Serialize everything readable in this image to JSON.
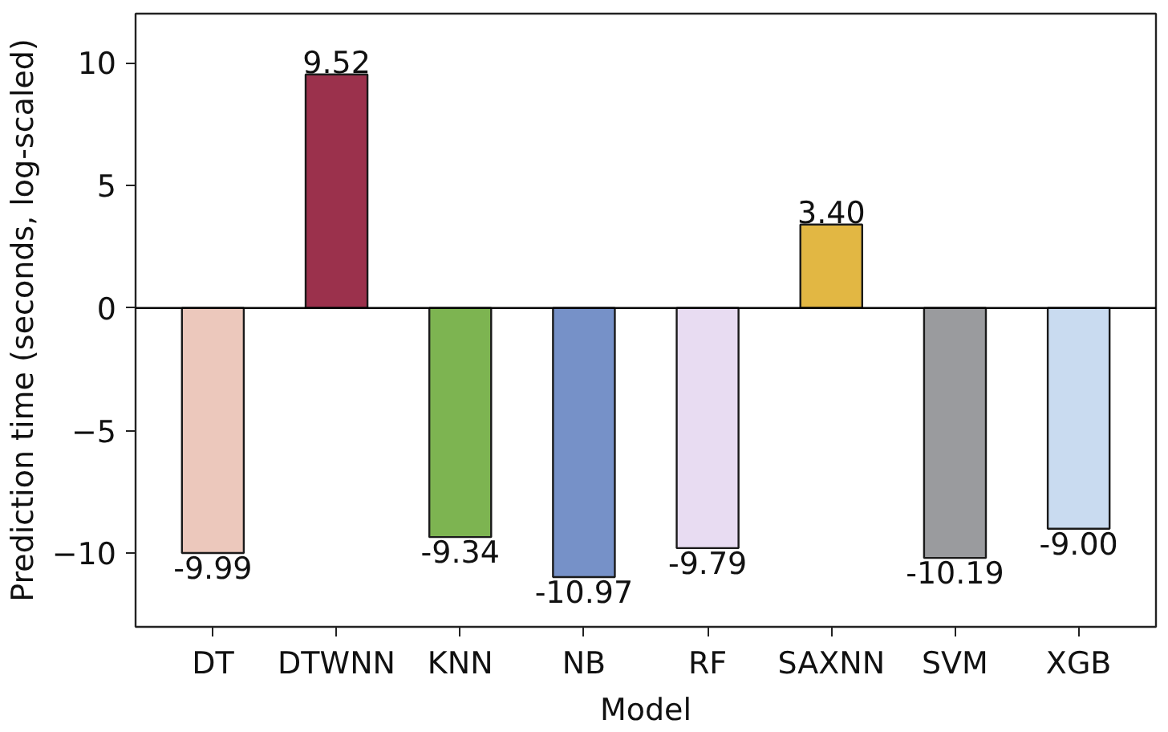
{
  "chart_data": {
    "type": "bar",
    "xlabel": "Model",
    "ylabel": "Prediction time (seconds, log-scaled)",
    "categories": [
      "DT",
      "DTWNN",
      "KNN",
      "NB",
      "RF",
      "SAXNN",
      "SVM",
      "XGB"
    ],
    "values": [
      -9.99,
      9.52,
      -9.34,
      -10.97,
      -9.79,
      3.4,
      -10.19,
      -9.0
    ],
    "value_labels": [
      "-9.99",
      "9.52",
      "-9.34",
      "-10.97",
      "-9.79",
      "3.40",
      "-10.19",
      "-9.00"
    ],
    "colors": [
      "#ecc8bc",
      "#9b314c",
      "#7db451",
      "#7691c8",
      "#e8dcf2",
      "#e2b743",
      "#9a9b9e",
      "#c9dbf0"
    ],
    "ylim": [
      -13,
      12
    ],
    "yticks": [
      {
        "value": -10,
        "label": "−10"
      },
      {
        "value": -5,
        "label": "−5"
      },
      0,
      5,
      10
    ],
    "ref_lines": [
      {
        "axis": "y",
        "value": 0,
        "color": "#000000"
      }
    ]
  }
}
